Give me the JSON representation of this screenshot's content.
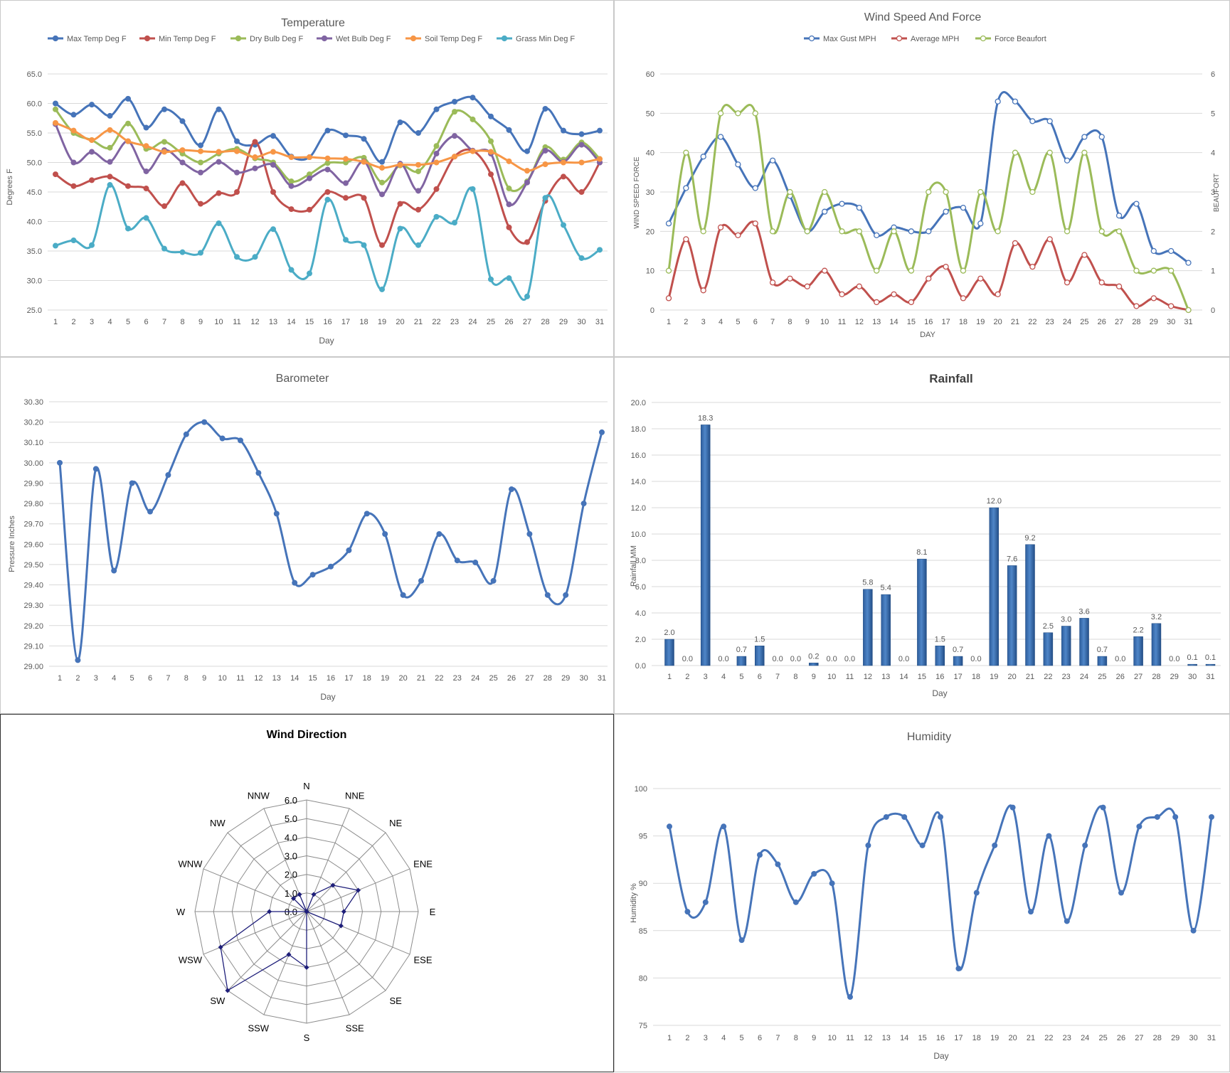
{
  "colors": {
    "blue": "#4674b9",
    "red": "#c0504d",
    "green": "#9bbb59",
    "purple": "#8064a2",
    "orange": "#f79646",
    "teal": "#4bacc6",
    "grid": "#d9d9d9",
    "text": "#595959",
    "bar": "#3e74b8",
    "radar": "#1f1f7a"
  },
  "days": [
    "1",
    "2",
    "3",
    "4",
    "5",
    "6",
    "7",
    "8",
    "9",
    "10",
    "11",
    "12",
    "13",
    "14",
    "15",
    "16",
    "17",
    "18",
    "19",
    "20",
    "21",
    "22",
    "23",
    "24",
    "25",
    "26",
    "27",
    "28",
    "29",
    "30",
    "31"
  ],
  "chart_data": [
    {
      "type": "line",
      "title": "Temperature",
      "xlabel": "Day",
      "ylabel": "Degrees F",
      "ylim": [
        25,
        65
      ],
      "yticks": [
        "25.0",
        "30.0",
        "35.0",
        "40.0",
        "45.0",
        "50.0",
        "55.0",
        "60.0",
        "65.0"
      ],
      "grid": true,
      "legend": "top",
      "series": [
        {
          "name": "Max Temp Deg F",
          "color": "#4674b9",
          "values": [
            60.0,
            58.1,
            59.8,
            57.9,
            60.8,
            55.9,
            59.0,
            57.0,
            52.9,
            59.0,
            53.6,
            53.0,
            54.5,
            51.0,
            50.9,
            55.4,
            54.6,
            54.0,
            50.1,
            56.8,
            55.0,
            59.0,
            60.3,
            61.0,
            57.8,
            55.5,
            51.9,
            59.1,
            55.4,
            54.8,
            55.4
          ]
        },
        {
          "name": "Min Temp Deg F",
          "color": "#c0504d",
          "values": [
            48.0,
            46.0,
            47.0,
            47.6,
            46.0,
            45.6,
            42.6,
            46.5,
            43.0,
            44.8,
            45.0,
            53.5,
            45.0,
            42.1,
            42.0,
            45.0,
            44.0,
            44.0,
            36.0,
            43.0,
            42.0,
            45.5,
            51.0,
            52.0,
            48.0,
            39.0,
            36.5,
            43.5,
            47.6,
            45.0,
            50.0
          ]
        },
        {
          "name": "Dry Bulb Deg F",
          "color": "#9bbb59",
          "values": [
            59.0,
            55.0,
            53.8,
            52.5,
            56.6,
            52.3,
            53.5,
            51.5,
            50.0,
            51.5,
            52.3,
            50.7,
            50.0,
            46.8,
            48.0,
            49.9,
            50.0,
            50.8,
            46.6,
            49.5,
            48.5,
            52.8,
            58.6,
            57.3,
            53.6,
            45.6,
            46.8,
            52.6,
            50.5,
            53.4,
            50.6
          ]
        },
        {
          "name": "Wet Bulb Deg F",
          "color": "#8064a2",
          "values": [
            56.5,
            50.0,
            51.8,
            50.1,
            53.6,
            48.5,
            52.1,
            50.0,
            48.3,
            50.1,
            48.3,
            49.0,
            49.6,
            46.0,
            47.3,
            48.8,
            46.5,
            50.2,
            44.6,
            49.8,
            45.2,
            51.5,
            54.5,
            52.0,
            51.5,
            42.9,
            46.6,
            52.0,
            50.1,
            53.0,
            50.0
          ]
        },
        {
          "name": "Soil Temp Deg F",
          "color": "#f79646",
          "values": [
            56.7,
            55.4,
            53.8,
            55.5,
            53.6,
            52.8,
            51.8,
            52.1,
            51.9,
            51.8,
            51.9,
            50.9,
            51.8,
            50.9,
            50.9,
            50.7,
            50.6,
            50.1,
            49.1,
            49.6,
            49.6,
            50.0,
            51.0,
            51.9,
            51.8,
            50.2,
            48.6,
            49.7,
            50.0,
            50.0,
            50.6
          ]
        },
        {
          "name": "Grass Min Deg F",
          "color": "#4bacc6",
          "values": [
            35.9,
            36.8,
            36.0,
            46.2,
            38.8,
            40.6,
            35.4,
            34.8,
            34.7,
            39.7,
            34.0,
            34.0,
            38.7,
            31.8,
            31.2,
            43.7,
            36.9,
            36.0,
            28.5,
            38.8,
            36.0,
            40.8,
            39.8,
            45.5,
            30.2,
            30.4,
            27.3,
            44.0,
            39.4,
            33.8,
            35.2
          ]
        }
      ]
    },
    {
      "type": "line",
      "title": "Wind Speed And Force",
      "xlabel": "DAY",
      "ylabel": "WIND SPEED FORCE",
      "y2label": "BEAUFORT",
      "ylim": [
        0,
        60
      ],
      "y2lim": [
        0,
        6
      ],
      "yticks": [
        "0",
        "10",
        "20",
        "30",
        "40",
        "50",
        "60"
      ],
      "y2ticks": [
        "0",
        "1",
        "2",
        "3",
        "4",
        "5",
        "6"
      ],
      "grid": true,
      "legend": "top",
      "series": [
        {
          "name": "Max Gust MPH",
          "color": "#4674b9",
          "axis": "left",
          "values": [
            22,
            31,
            39,
            44,
            37,
            31,
            38,
            29,
            20,
            25,
            27,
            26,
            19,
            21,
            20,
            20,
            25,
            26,
            22,
            53,
            53,
            48,
            48,
            38,
            44,
            44,
            24,
            27,
            15,
            15,
            12
          ]
        },
        {
          "name": "Average MPH",
          "color": "#c0504d",
          "axis": "left",
          "values": [
            3,
            18,
            5,
            21,
            19,
            22,
            7,
            8,
            6,
            10,
            4,
            6,
            2,
            4,
            2,
            8,
            11,
            3,
            8,
            4,
            17,
            11,
            18,
            7,
            14,
            7,
            6,
            1,
            3,
            1,
            0
          ]
        },
        {
          "name": "Force Beaufort",
          "color": "#9bbb59",
          "axis": "right",
          "values": [
            1,
            4,
            2,
            5,
            5,
            5,
            2,
            3,
            2,
            3,
            2,
            2,
            1,
            2,
            1,
            3,
            3,
            1,
            3,
            2,
            4,
            3,
            4,
            2,
            4,
            2,
            2,
            1,
            1,
            1,
            0
          ]
        }
      ]
    },
    {
      "type": "line",
      "title": "Barometer",
      "xlabel": "Day",
      "ylabel": "Pressure Inches",
      "ylim": [
        29.0,
        30.3
      ],
      "yticks": [
        "29.00",
        "29.10",
        "29.20",
        "29.30",
        "29.40",
        "29.50",
        "29.60",
        "29.70",
        "29.80",
        "29.90",
        "30.00",
        "30.10",
        "30.20",
        "30.30"
      ],
      "grid": true,
      "series": [
        {
          "name": "Pressure",
          "color": "#4674b9",
          "values": [
            30.0,
            29.03,
            29.97,
            29.47,
            29.9,
            29.76,
            29.94,
            30.14,
            30.2,
            30.12,
            30.11,
            29.95,
            29.75,
            29.41,
            29.45,
            29.49,
            29.57,
            29.75,
            29.65,
            29.35,
            29.42,
            29.65,
            29.52,
            29.51,
            29.42,
            29.87,
            29.65,
            29.35,
            29.35,
            29.8,
            30.15
          ]
        }
      ]
    },
    {
      "type": "bar",
      "title": "Rainfall",
      "xlabel": "Day",
      "ylabel": "Rainfall MM",
      "ylim": [
        0,
        20
      ],
      "yticks": [
        "0.0",
        "2.0",
        "4.0",
        "6.0",
        "8.0",
        "10.0",
        "12.0",
        "14.0",
        "16.0",
        "18.0",
        "20.0"
      ],
      "grid": true,
      "values": [
        2.0,
        0.0,
        18.3,
        0.0,
        0.7,
        1.5,
        0.0,
        0.0,
        0.2,
        0.0,
        0.0,
        5.8,
        5.4,
        0.0,
        8.1,
        1.5,
        0.7,
        0.0,
        12.0,
        7.6,
        9.2,
        2.5,
        3.0,
        3.6,
        0.7,
        0.0,
        2.2,
        3.2,
        0.0,
        0.1,
        0.1
      ],
      "labels": [
        "2.0",
        "0.0",
        "18.3",
        "0.0",
        "0.7",
        "1.5",
        "0.0",
        "0.0",
        "0.2",
        "0.0",
        "0.0",
        "5.8",
        "5.4",
        "0.0",
        "8.1",
        "1.5",
        "0.7",
        "0.0",
        "12.0",
        "7.6",
        "9.2",
        "2.5",
        "3.0",
        "3.6",
        "0.7",
        "0.0",
        "2.2",
        "3.2",
        "0.0",
        "0.1",
        "0.1"
      ]
    },
    {
      "type": "radar",
      "title": "Wind Direction",
      "rlim": [
        0,
        6
      ],
      "rticks": [
        "0.0",
        "1.0",
        "2.0",
        "3.0",
        "4.0",
        "5.0",
        "6.0"
      ],
      "categories": [
        "N",
        "NNE",
        "NE",
        "ENE",
        "E",
        "ESE",
        "SE",
        "SSE",
        "S",
        "SSW",
        "SW",
        "WSW",
        "W",
        "WNW",
        "NW",
        "NNW"
      ],
      "values": [
        0.0,
        1.0,
        2.0,
        3.0,
        2.0,
        2.0,
        0.0,
        0.0,
        3.0,
        2.5,
        6.0,
        5.0,
        2.0,
        0.0,
        1.0,
        1.0
      ]
    },
    {
      "type": "line",
      "title": "Humidity",
      "xlabel": "Day",
      "ylabel": "Humidity %",
      "ylim": [
        75,
        100
      ],
      "yticks": [
        "75",
        "80",
        "85",
        "90",
        "95",
        "100"
      ],
      "grid": true,
      "series": [
        {
          "name": "Humidity",
          "color": "#4674b9",
          "values": [
            96,
            87,
            88,
            96,
            84,
            93,
            92,
            88,
            91,
            90,
            78,
            94,
            97,
            97,
            94,
            97,
            81,
            89,
            94,
            98,
            87,
            95,
            86,
            94,
            98,
            89,
            96,
            97,
            97,
            85,
            97
          ]
        }
      ]
    }
  ]
}
